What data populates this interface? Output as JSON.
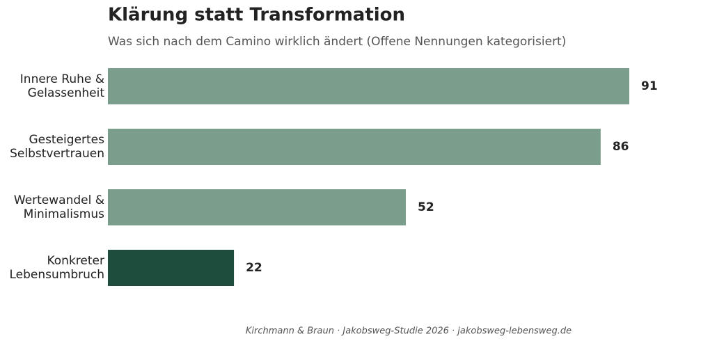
{
  "chart_data": {
    "type": "bar",
    "orientation": "horizontal",
    "title": "Klärung statt Transformation",
    "subtitle": "Was sich nach dem Camino wirklich ändert (Offene Nennungen kategorisiert)",
    "caption": "Kirchmann & Braun · Jakobsweg-Studie 2026 · jakobsweg-lebensweg.de",
    "categories": [
      "Innere Ruhe &\nGelassenheit",
      "Gesteigertes\nSelbstvertrauen",
      "Wertewandel &\nMinimalismus",
      "Konkreter\nLebensumbruch"
    ],
    "values": [
      91,
      86,
      52,
      22
    ],
    "colors": [
      "#7a9e8b",
      "#7a9e8b",
      "#7a9e8b",
      "#1f4d3d"
    ],
    "xlim": [
      0,
      91
    ]
  }
}
